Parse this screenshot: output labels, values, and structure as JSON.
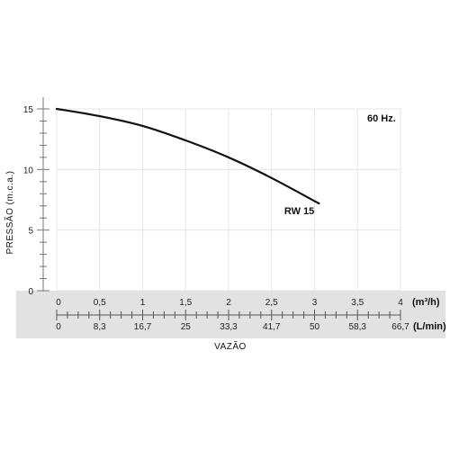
{
  "chart_data": {
    "type": "line",
    "frequency_label": "60 Hz.",
    "ylabel": "PRESSÃO (m.c.a.)",
    "xlabel": "VAZÃO",
    "x_unit_primary": "(m³/h)",
    "x_unit_secondary": "(L/min)",
    "ylim": [
      0,
      15
    ],
    "xlim": [
      0,
      4
    ],
    "y_ticks": [
      "0",
      "5",
      "10",
      "15"
    ],
    "x_ticks_primary": [
      "0",
      "0,5",
      "1",
      "1,5",
      "2",
      "2,5",
      "3",
      "3,5",
      "4"
    ],
    "x_ticks_secondary": [
      "0",
      "8,3",
      "16,7",
      "25",
      "33,3",
      "41,7",
      "50",
      "58,3",
      "66,7"
    ],
    "grid": true,
    "series": [
      {
        "name": "RW 15",
        "x": [
          0,
          0.5,
          1,
          1.5,
          2,
          2.5,
          3.05
        ],
        "y": [
          15,
          14.4,
          13.6,
          12.4,
          11.0,
          9.3,
          7.2
        ]
      }
    ]
  }
}
